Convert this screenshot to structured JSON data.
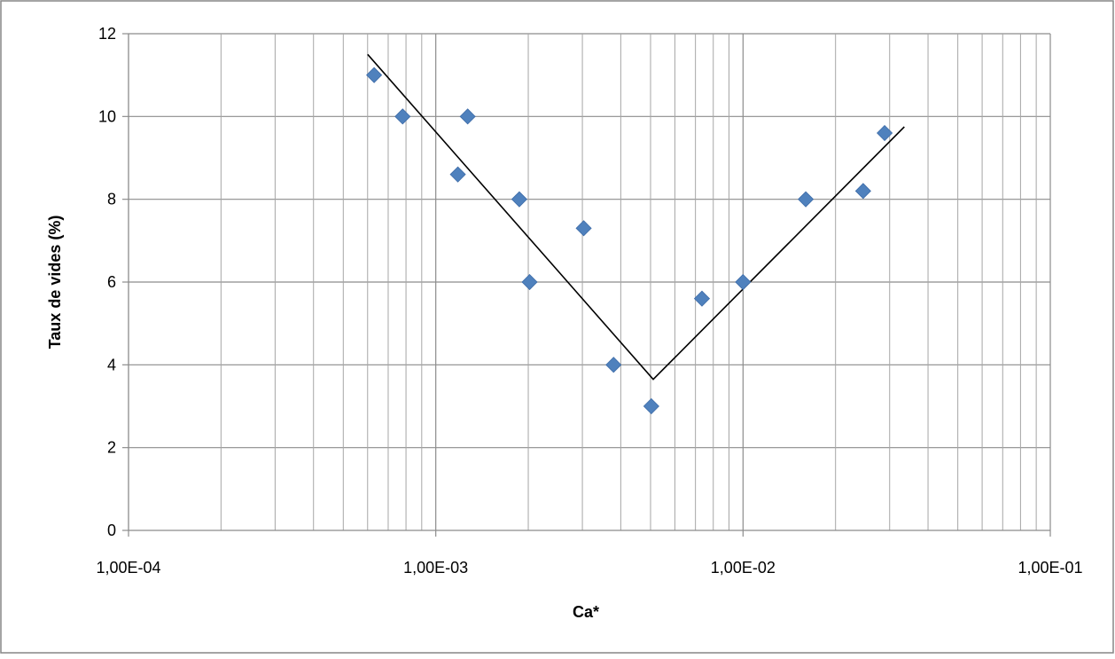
{
  "colors": {
    "marker": "#4F81BD",
    "trend_line": "#000000",
    "grid_major": "#8C8C8C",
    "grid_minor": "#A6A6A6",
    "border": "#868686"
  },
  "chart_data": {
    "type": "scatter",
    "title": "",
    "xlabel": "Ca*",
    "ylabel": "Taux de vides (%)",
    "x_scale": "log",
    "xlim": [
      0.0001,
      0.1
    ],
    "ylim": [
      0,
      12
    ],
    "y_ticks": [
      0,
      2,
      4,
      6,
      8,
      10,
      12
    ],
    "y_tick_labels": [
      "0",
      "2",
      "4",
      "6",
      "8",
      "10",
      "12"
    ],
    "x_ticks": [
      0.0001,
      0.001,
      0.01,
      0.1
    ],
    "x_tick_labels": [
      "1,00E-04",
      "1,00E-03",
      "1,00E-02",
      "1,00E-01"
    ],
    "grid": true,
    "legend": "none",
    "marker": "diamond",
    "points": [
      {
        "x": 0.00063,
        "y": 11
      },
      {
        "x": 0.00078,
        "y": 10
      },
      {
        "x": 0.00118,
        "y": 8.6
      },
      {
        "x": 0.00127,
        "y": 10
      },
      {
        "x": 0.00187,
        "y": 8
      },
      {
        "x": 0.00202,
        "y": 6
      },
      {
        "x": 0.00303,
        "y": 7.3
      },
      {
        "x": 0.00379,
        "y": 4
      },
      {
        "x": 0.00503,
        "y": 3
      },
      {
        "x": 0.00735,
        "y": 5.6
      },
      {
        "x": 0.01,
        "y": 6
      },
      {
        "x": 0.016,
        "y": 8
      },
      {
        "x": 0.0246,
        "y": 8.2
      },
      {
        "x": 0.0289,
        "y": 9.6
      }
    ],
    "trend_line": [
      {
        "x": 0.0006,
        "y": 11.5
      },
      {
        "x": 0.0051,
        "y": 3.65
      },
      {
        "x": 0.0335,
        "y": 9.75
      }
    ]
  }
}
